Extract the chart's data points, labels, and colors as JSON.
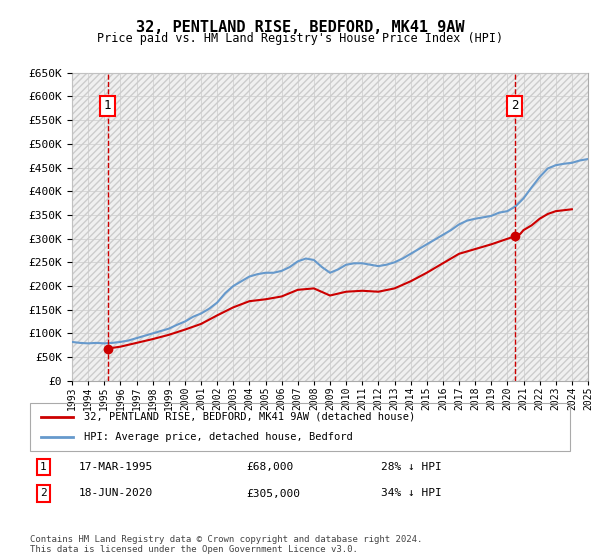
{
  "title": "32, PENTLAND RISE, BEDFORD, MK41 9AW",
  "subtitle": "Price paid vs. HM Land Registry's House Price Index (HPI)",
  "legend_line1": "32, PENTLAND RISE, BEDFORD, MK41 9AW (detached house)",
  "legend_line2": "HPI: Average price, detached house, Bedford",
  "annotation1_label": "1",
  "annotation1_date": "17-MAR-1995",
  "annotation1_price": "£68,000",
  "annotation1_hpi": "28% ↓ HPI",
  "annotation1_year": 1995.21,
  "annotation1_value": 68000,
  "annotation2_label": "2",
  "annotation2_date": "18-JUN-2020",
  "annotation2_price": "£305,000",
  "annotation2_hpi": "34% ↓ HPI",
  "annotation2_year": 2020.46,
  "annotation2_value": 305000,
  "property_color": "#cc0000",
  "hpi_color": "#6699cc",
  "vline_color": "#cc0000",
  "marker_color": "#cc0000",
  "ylim": [
    0,
    650000
  ],
  "yticks": [
    0,
    50000,
    100000,
    150000,
    200000,
    250000,
    300000,
    350000,
    400000,
    450000,
    500000,
    550000,
    600000,
    650000
  ],
  "footnote": "Contains HM Land Registry data © Crown copyright and database right 2024.\nThis data is licensed under the Open Government Licence v3.0.",
  "background_color": "#ffffff",
  "grid_color": "#cccccc",
  "hpi_data": [
    [
      1993.0,
      82000
    ],
    [
      1993.5,
      80000
    ],
    [
      1994.0,
      79000
    ],
    [
      1994.5,
      80000
    ],
    [
      1995.0,
      79000
    ],
    [
      1995.5,
      80000
    ],
    [
      1996.0,
      82000
    ],
    [
      1996.5,
      85000
    ],
    [
      1997.0,
      90000
    ],
    [
      1997.5,
      95000
    ],
    [
      1998.0,
      100000
    ],
    [
      1998.5,
      105000
    ],
    [
      1999.0,
      110000
    ],
    [
      1999.5,
      118000
    ],
    [
      2000.0,
      125000
    ],
    [
      2000.5,
      135000
    ],
    [
      2001.0,
      142000
    ],
    [
      2001.5,
      152000
    ],
    [
      2002.0,
      165000
    ],
    [
      2002.5,
      185000
    ],
    [
      2003.0,
      200000
    ],
    [
      2003.5,
      210000
    ],
    [
      2004.0,
      220000
    ],
    [
      2004.5,
      225000
    ],
    [
      2005.0,
      228000
    ],
    [
      2005.5,
      228000
    ],
    [
      2006.0,
      232000
    ],
    [
      2006.5,
      240000
    ],
    [
      2007.0,
      252000
    ],
    [
      2007.5,
      258000
    ],
    [
      2008.0,
      255000
    ],
    [
      2008.5,
      240000
    ],
    [
      2009.0,
      228000
    ],
    [
      2009.5,
      235000
    ],
    [
      2010.0,
      245000
    ],
    [
      2010.5,
      248000
    ],
    [
      2011.0,
      248000
    ],
    [
      2011.5,
      245000
    ],
    [
      2012.0,
      242000
    ],
    [
      2012.5,
      245000
    ],
    [
      2013.0,
      250000
    ],
    [
      2013.5,
      258000
    ],
    [
      2014.0,
      268000
    ],
    [
      2014.5,
      278000
    ],
    [
      2015.0,
      288000
    ],
    [
      2015.5,
      298000
    ],
    [
      2016.0,
      308000
    ],
    [
      2016.5,
      318000
    ],
    [
      2017.0,
      330000
    ],
    [
      2017.5,
      338000
    ],
    [
      2018.0,
      342000
    ],
    [
      2018.5,
      345000
    ],
    [
      2019.0,
      348000
    ],
    [
      2019.5,
      355000
    ],
    [
      2020.0,
      358000
    ],
    [
      2020.5,
      368000
    ],
    [
      2021.0,
      385000
    ],
    [
      2021.5,
      408000
    ],
    [
      2022.0,
      430000
    ],
    [
      2022.5,
      448000
    ],
    [
      2023.0,
      455000
    ],
    [
      2023.5,
      458000
    ],
    [
      2024.0,
      460000
    ],
    [
      2024.5,
      465000
    ],
    [
      2025.0,
      468000
    ]
  ],
  "property_data": [
    [
      1995.21,
      68000
    ],
    [
      1996.0,
      72000
    ],
    [
      1997.0,
      80000
    ],
    [
      1998.0,
      88000
    ],
    [
      1999.0,
      97000
    ],
    [
      2000.0,
      108000
    ],
    [
      2001.0,
      120000
    ],
    [
      2002.0,
      138000
    ],
    [
      2003.0,
      155000
    ],
    [
      2004.0,
      168000
    ],
    [
      2005.0,
      172000
    ],
    [
      2006.0,
      178000
    ],
    [
      2007.0,
      192000
    ],
    [
      2008.0,
      195000
    ],
    [
      2009.0,
      180000
    ],
    [
      2010.0,
      188000
    ],
    [
      2011.0,
      190000
    ],
    [
      2012.0,
      188000
    ],
    [
      2013.0,
      195000
    ],
    [
      2014.0,
      210000
    ],
    [
      2015.0,
      228000
    ],
    [
      2016.0,
      248000
    ],
    [
      2017.0,
      268000
    ],
    [
      2018.0,
      278000
    ],
    [
      2019.0,
      288000
    ],
    [
      2020.46,
      305000
    ],
    [
      2020.8,
      310000
    ],
    [
      2021.0,
      318000
    ],
    [
      2021.5,
      328000
    ],
    [
      2022.0,
      342000
    ],
    [
      2022.5,
      352000
    ],
    [
      2023.0,
      358000
    ],
    [
      2023.5,
      360000
    ],
    [
      2024.0,
      362000
    ]
  ]
}
